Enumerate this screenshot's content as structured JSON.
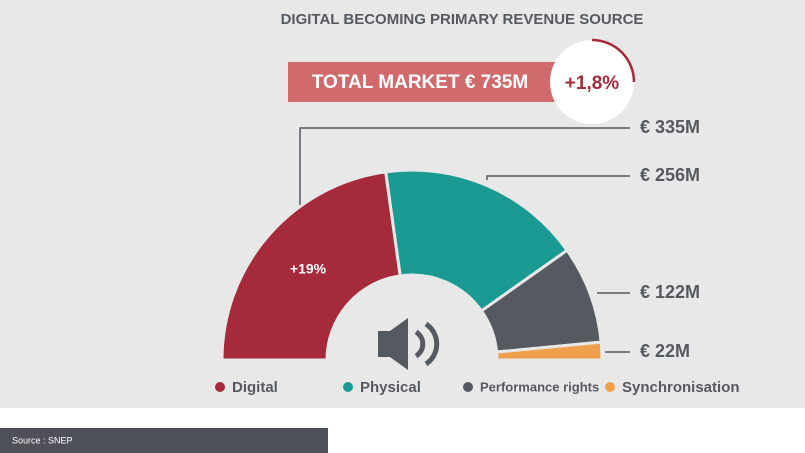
{
  "chart_data": {
    "type": "pie",
    "title": "DIGITAL BECOMING PRIMARY REVENUE SOURCE",
    "banner": "TOTAL MARKET € 735M",
    "growth": "+1,8%",
    "annotation": "+19%",
    "categories": [
      "Digital",
      "Physical",
      "Performance rights",
      "Synchronisation"
    ],
    "values": [
      335,
      256,
      122,
      22
    ],
    "value_labels": [
      "€ 335M",
      "€ 256M",
      "€ 122M",
      "€ 22M"
    ],
    "colors": [
      "#a52a3b",
      "#1a9a93",
      "#555a61",
      "#f0a04b"
    ],
    "source": "Source : SNEP"
  }
}
